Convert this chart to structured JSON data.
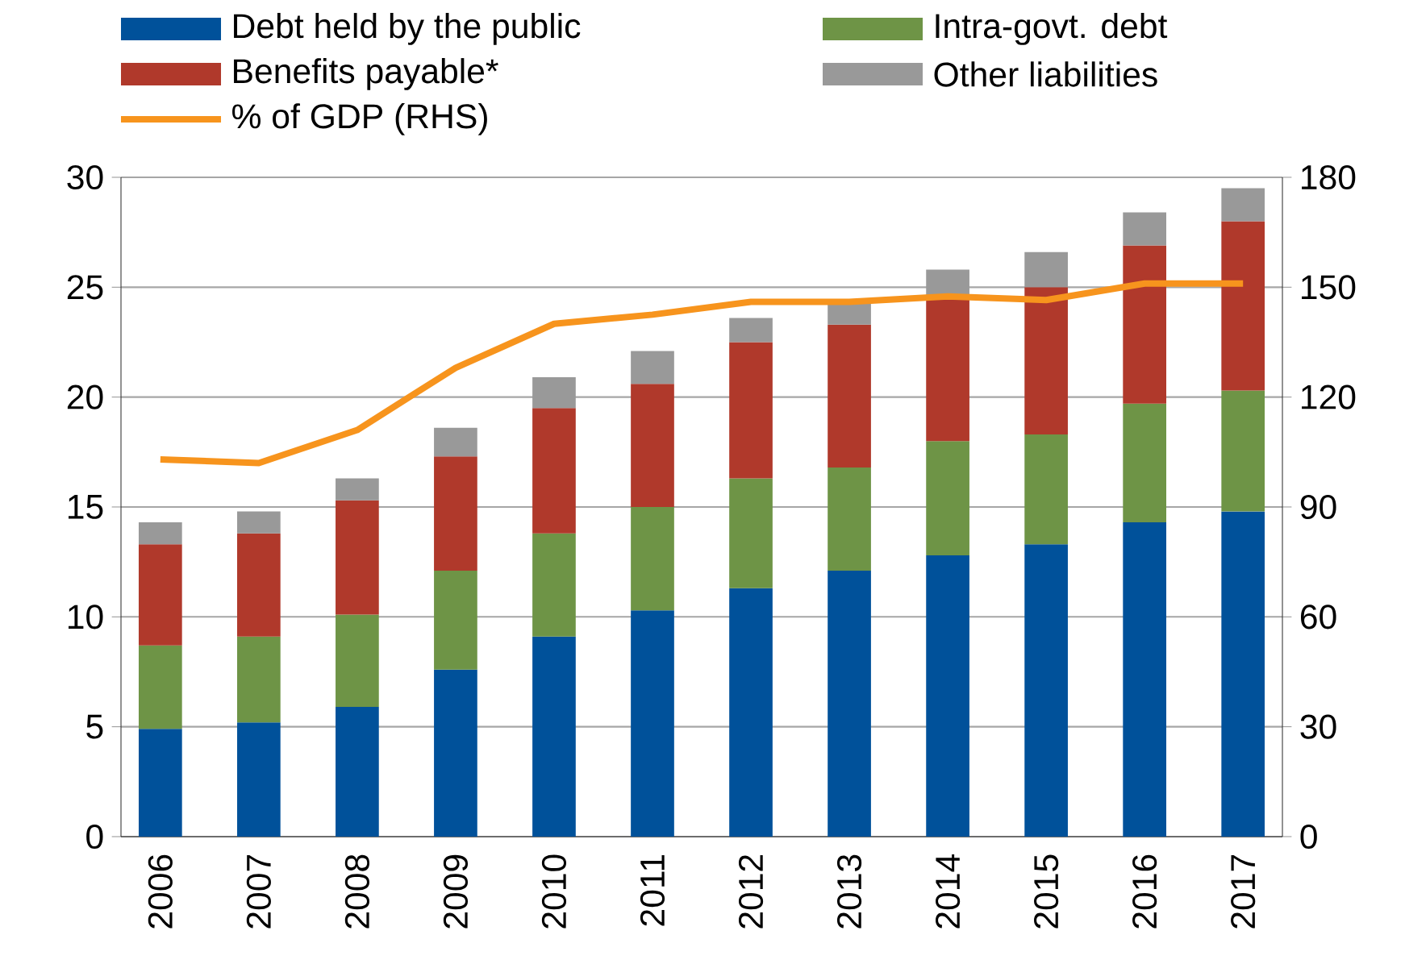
{
  "chart_data": {
    "type": "bar",
    "stacked": true,
    "categories": [
      "2006",
      "2007",
      "2008",
      "2009",
      "2010",
      "2011",
      "2012",
      "2013",
      "2014",
      "2015",
      "2016",
      "2017"
    ],
    "series": [
      {
        "name": "Debt held by the public",
        "color": "#00519a",
        "values": [
          4.9,
          5.2,
          5.9,
          7.6,
          9.1,
          10.3,
          11.3,
          12.1,
          12.8,
          13.3,
          14.3,
          14.8
        ]
      },
      {
        "name": "Intra-govt. debt",
        "color": "#6e9446",
        "values": [
          3.8,
          3.9,
          4.2,
          4.5,
          4.7,
          4.7,
          5.0,
          4.7,
          5.2,
          5.0,
          5.4,
          5.5
        ]
      },
      {
        "name": "Benefits payable*",
        "color": "#b0392b",
        "values": [
          4.6,
          4.7,
          5.2,
          5.2,
          5.7,
          5.6,
          6.2,
          6.5,
          6.5,
          6.7,
          7.2,
          7.7
        ]
      },
      {
        "name": "Other liabilities",
        "color": "#999999",
        "values": [
          1.0,
          1.0,
          1.0,
          1.3,
          1.4,
          1.5,
          1.1,
          1.1,
          1.3,
          1.6,
          1.5,
          1.5
        ]
      },
      {
        "name": "% of GDP (RHS)",
        "color": "#f7941d",
        "type": "line",
        "axis": "y2",
        "values": [
          103,
          102,
          111,
          128,
          140,
          142.5,
          146,
          146,
          147.5,
          146.5,
          151,
          151
        ]
      }
    ],
    "ylim": [
      0,
      30
    ],
    "yticks": [
      0,
      5,
      10,
      15,
      20,
      25,
      30
    ],
    "y2lim": [
      0,
      180
    ],
    "y2ticks": [
      0,
      30,
      60,
      90,
      120,
      150,
      180
    ],
    "grid": "y",
    "legend": "top",
    "marker": "none"
  }
}
